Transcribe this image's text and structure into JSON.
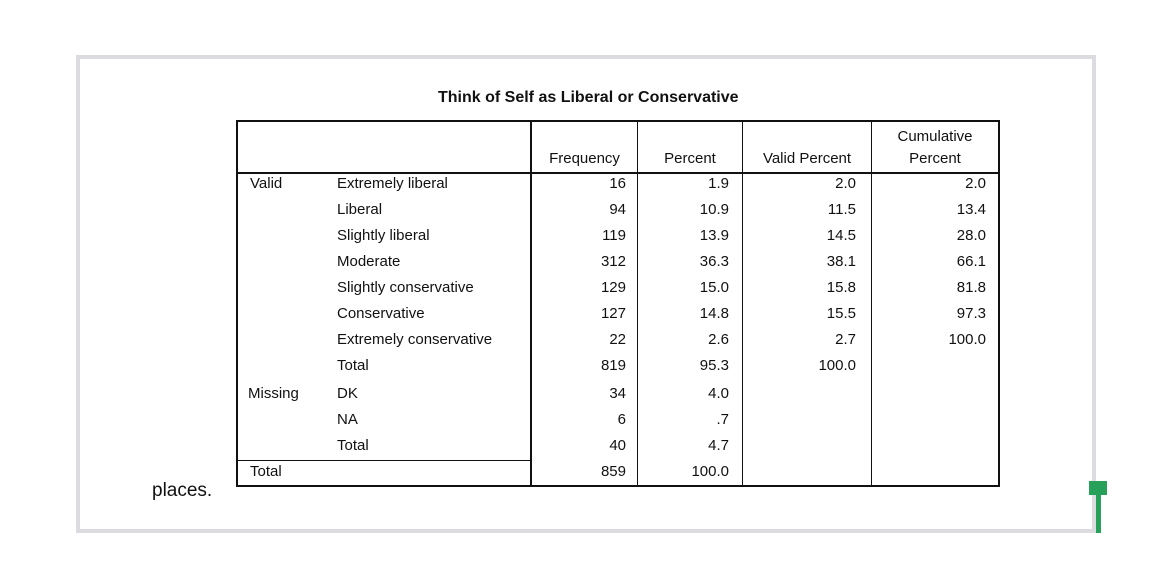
{
  "table": {
    "title": "Think of Self as Liberal or Conservative",
    "headers": {
      "frequency": "Frequency",
      "percent": "Percent",
      "valid_percent": "Valid Percent",
      "cumulative_line1": "Cumulative",
      "cumulative_line2": "Percent"
    },
    "groups": {
      "valid": "Valid",
      "missing": "Missing",
      "total": "Total"
    },
    "rows": [
      {
        "label": "Extremely liberal",
        "frequency": "16",
        "percent": "1.9",
        "valid_percent": "2.0",
        "cumulative": "2.0"
      },
      {
        "label": "Liberal",
        "frequency": "94",
        "percent": "10.9",
        "valid_percent": "11.5",
        "cumulative": "13.4"
      },
      {
        "label": "Slightly liberal",
        "frequency": "119",
        "percent": "13.9",
        "valid_percent": "14.5",
        "cumulative": "28.0"
      },
      {
        "label": "Moderate",
        "frequency": "312",
        "percent": "36.3",
        "valid_percent": "38.1",
        "cumulative": "66.1"
      },
      {
        "label": "Slightly conservative",
        "frequency": "129",
        "percent": "15.0",
        "valid_percent": "15.8",
        "cumulative": "81.8"
      },
      {
        "label": "Conservative",
        "frequency": "127",
        "percent": "14.8",
        "valid_percent": "15.5",
        "cumulative": "97.3"
      },
      {
        "label": "Extremely conservative",
        "frequency": "22",
        "percent": "2.6",
        "valid_percent": "2.7",
        "cumulative": "100.0"
      },
      {
        "label": "Total",
        "frequency": "819",
        "percent": "95.3",
        "valid_percent": "100.0",
        "cumulative": ""
      },
      {
        "label": "DK",
        "frequency": "34",
        "percent": "4.0",
        "valid_percent": "",
        "cumulative": ""
      },
      {
        "label": "NA",
        "frequency": "6",
        "percent": ".7",
        "valid_percent": "",
        "cumulative": ""
      },
      {
        "label": "Total",
        "frequency": "40",
        "percent": "4.7",
        "valid_percent": "",
        "cumulative": ""
      },
      {
        "label": "",
        "frequency": "859",
        "percent": "100.0",
        "valid_percent": "",
        "cumulative": ""
      }
    ]
  },
  "page": {
    "trailing_text": "places."
  },
  "colors": {
    "frame_border": "#dcdce0",
    "cursor": "#27a05a"
  }
}
